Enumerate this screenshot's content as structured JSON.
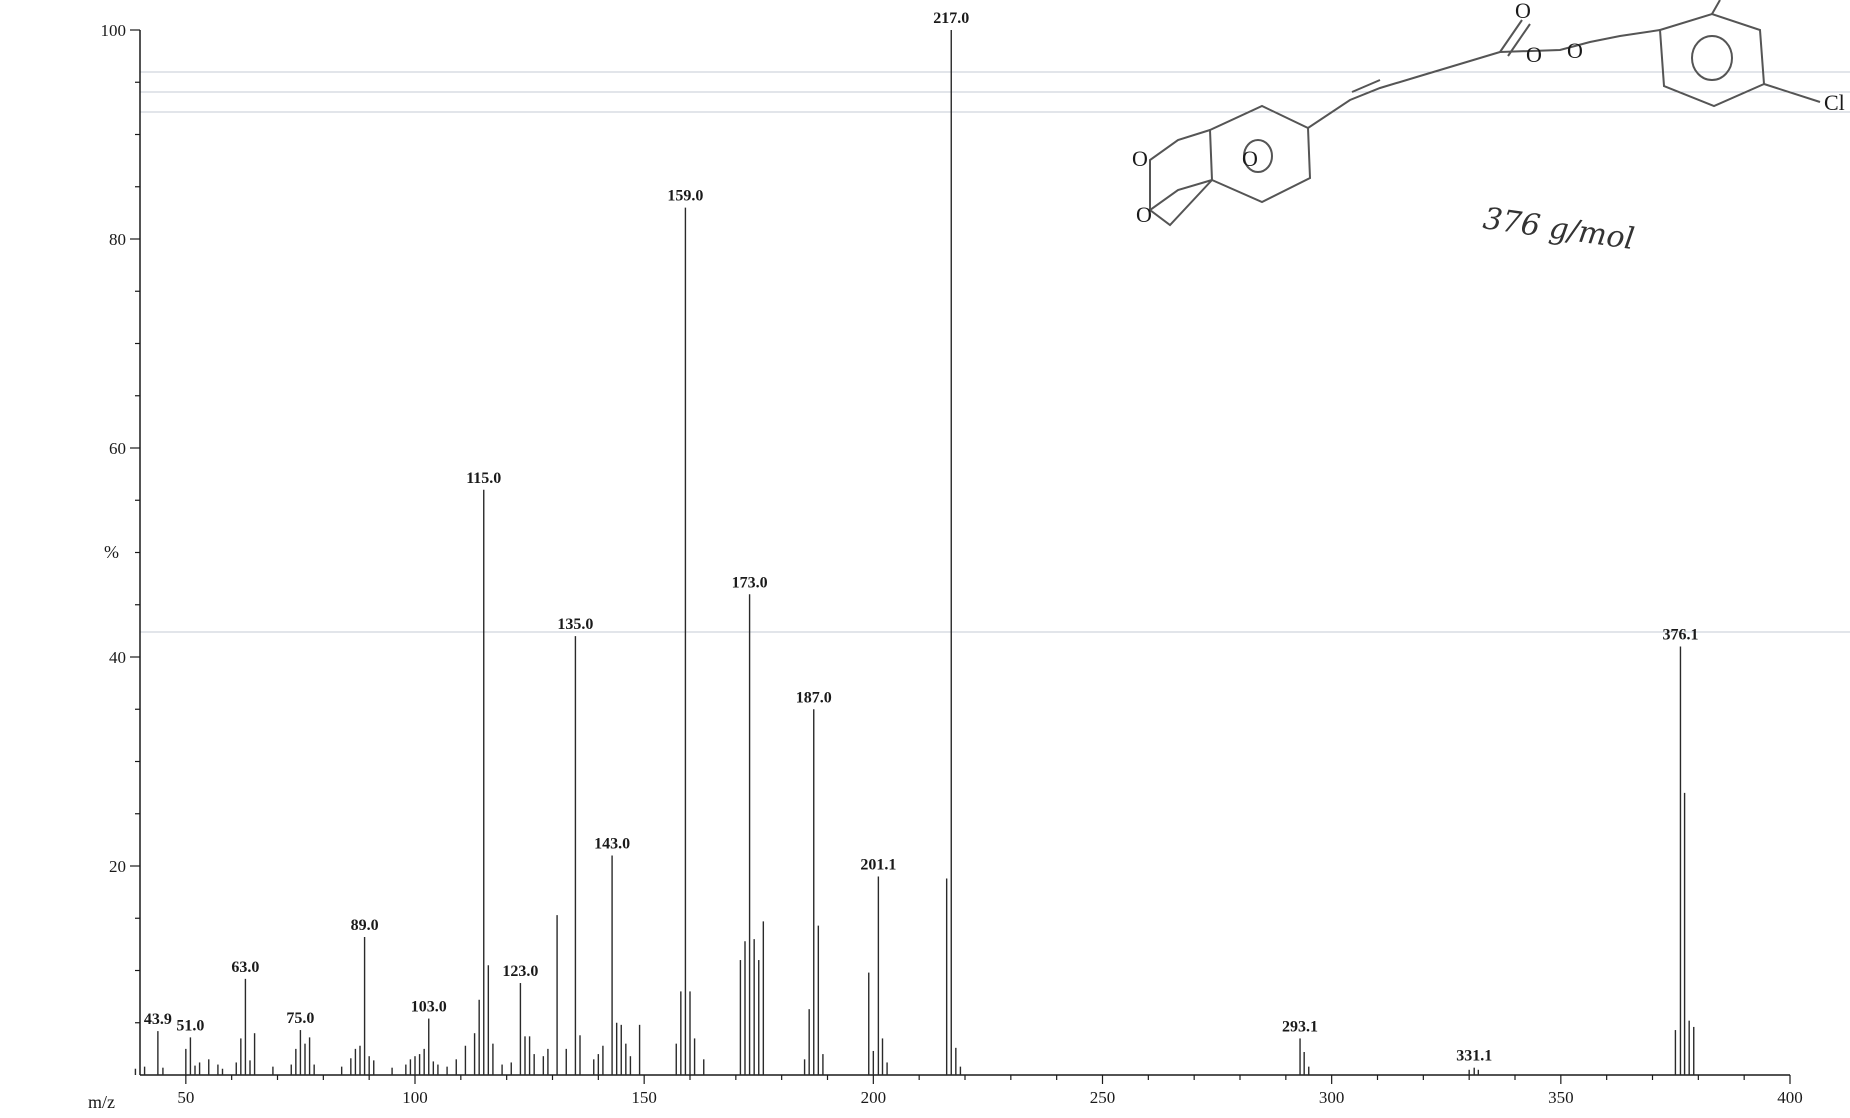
{
  "chart_data": {
    "type": "bar",
    "title": "",
    "xlabel": "m/z",
    "ylabel": "%",
    "xlim": [
      40,
      400
    ],
    "ylim": [
      0,
      100
    ],
    "x_ticks": [
      50,
      100,
      150,
      200,
      250,
      300,
      350,
      400
    ],
    "y_ticks": [
      20,
      40,
      60,
      80,
      100
    ],
    "grid": false,
    "labeled_peaks": [
      {
        "mz": 43.9,
        "label": "43.9",
        "intensity": 4.2
      },
      {
        "mz": 51.0,
        "label": "51.0",
        "intensity": 3.6
      },
      {
        "mz": 63.0,
        "label": "63.0",
        "intensity": 9.2
      },
      {
        "mz": 75.0,
        "label": "75.0",
        "intensity": 4.3
      },
      {
        "mz": 89.0,
        "label": "89.0",
        "intensity": 13.2
      },
      {
        "mz": 103.0,
        "label": "103.0",
        "intensity": 5.4
      },
      {
        "mz": 115.0,
        "label": "115.0",
        "intensity": 56.0
      },
      {
        "mz": 123.0,
        "label": "123.0",
        "intensity": 8.8
      },
      {
        "mz": 135.0,
        "label": "135.0",
        "intensity": 42.0
      },
      {
        "mz": 143.0,
        "label": "143.0",
        "intensity": 21.0
      },
      {
        "mz": 159.0,
        "label": "159.0",
        "intensity": 83.0
      },
      {
        "mz": 173.0,
        "label": "173.0",
        "intensity": 46.0
      },
      {
        "mz": 187.0,
        "label": "187.0",
        "intensity": 35.0
      },
      {
        "mz": 201.1,
        "label": "201.1",
        "intensity": 19.0
      },
      {
        "mz": 217.0,
        "label": "217.0",
        "intensity": 100.0
      },
      {
        "mz": 293.1,
        "label": "293.1",
        "intensity": 3.5
      },
      {
        "mz": 331.1,
        "label": "331.1",
        "intensity": 0.7
      },
      {
        "mz": 376.1,
        "label": "376.1",
        "intensity": 41.0
      }
    ],
    "other_peaks": [
      {
        "mz": 39.0,
        "intensity": 0.6
      },
      {
        "mz": 41.0,
        "intensity": 0.8
      },
      {
        "mz": 45.0,
        "intensity": 0.7
      },
      {
        "mz": 50.0,
        "intensity": 2.5
      },
      {
        "mz": 52.0,
        "intensity": 0.9
      },
      {
        "mz": 53.0,
        "intensity": 1.2
      },
      {
        "mz": 55.0,
        "intensity": 1.5
      },
      {
        "mz": 57.0,
        "intensity": 1.0
      },
      {
        "mz": 58.0,
        "intensity": 0.6
      },
      {
        "mz": 61.0,
        "intensity": 1.2
      },
      {
        "mz": 62.0,
        "intensity": 3.5
      },
      {
        "mz": 64.0,
        "intensity": 1.4
      },
      {
        "mz": 65.0,
        "intensity": 4.0
      },
      {
        "mz": 69.0,
        "intensity": 0.8
      },
      {
        "mz": 73.0,
        "intensity": 1.0
      },
      {
        "mz": 74.0,
        "intensity": 2.5
      },
      {
        "mz": 76.0,
        "intensity": 3.0
      },
      {
        "mz": 77.0,
        "intensity": 3.6
      },
      {
        "mz": 78.0,
        "intensity": 1.0
      },
      {
        "mz": 84.0,
        "intensity": 0.8
      },
      {
        "mz": 86.0,
        "intensity": 1.6
      },
      {
        "mz": 87.0,
        "intensity": 2.5
      },
      {
        "mz": 88.0,
        "intensity": 2.8
      },
      {
        "mz": 90.0,
        "intensity": 1.8
      },
      {
        "mz": 91.0,
        "intensity": 1.4
      },
      {
        "mz": 95.0,
        "intensity": 0.7
      },
      {
        "mz": 98.0,
        "intensity": 1.0
      },
      {
        "mz": 99.0,
        "intensity": 1.5
      },
      {
        "mz": 100.0,
        "intensity": 1.8
      },
      {
        "mz": 101.0,
        "intensity": 2.0
      },
      {
        "mz": 102.0,
        "intensity": 2.5
      },
      {
        "mz": 104.0,
        "intensity": 1.3
      },
      {
        "mz": 105.0,
        "intensity": 1.0
      },
      {
        "mz": 107.0,
        "intensity": 0.8
      },
      {
        "mz": 109.0,
        "intensity": 1.5
      },
      {
        "mz": 111.0,
        "intensity": 2.8
      },
      {
        "mz": 113.0,
        "intensity": 4.0
      },
      {
        "mz": 114.0,
        "intensity": 7.2
      },
      {
        "mz": 116.0,
        "intensity": 10.5
      },
      {
        "mz": 117.0,
        "intensity": 3.0
      },
      {
        "mz": 119.0,
        "intensity": 1.0
      },
      {
        "mz": 121.0,
        "intensity": 1.2
      },
      {
        "mz": 124.0,
        "intensity": 3.7
      },
      {
        "mz": 125.0,
        "intensity": 3.7
      },
      {
        "mz": 126.0,
        "intensity": 2.0
      },
      {
        "mz": 128.0,
        "intensity": 1.8
      },
      {
        "mz": 129.0,
        "intensity": 2.5
      },
      {
        "mz": 131.0,
        "intensity": 15.3
      },
      {
        "mz": 133.0,
        "intensity": 2.5
      },
      {
        "mz": 136.0,
        "intensity": 3.8
      },
      {
        "mz": 139.0,
        "intensity": 1.5
      },
      {
        "mz": 140.0,
        "intensity": 2.0
      },
      {
        "mz": 141.0,
        "intensity": 2.8
      },
      {
        "mz": 144.0,
        "intensity": 5.0
      },
      {
        "mz": 145.0,
        "intensity": 4.8
      },
      {
        "mz": 146.0,
        "intensity": 3.0
      },
      {
        "mz": 147.0,
        "intensity": 1.8
      },
      {
        "mz": 149.0,
        "intensity": 4.8
      },
      {
        "mz": 157.0,
        "intensity": 3.0
      },
      {
        "mz": 158.0,
        "intensity": 8.0
      },
      {
        "mz": 160.0,
        "intensity": 8.0
      },
      {
        "mz": 161.0,
        "intensity": 3.5
      },
      {
        "mz": 163.0,
        "intensity": 1.5
      },
      {
        "mz": 171.0,
        "intensity": 11.0
      },
      {
        "mz": 172.0,
        "intensity": 12.8
      },
      {
        "mz": 174.0,
        "intensity": 13.0
      },
      {
        "mz": 175.0,
        "intensity": 11.0
      },
      {
        "mz": 176.0,
        "intensity": 14.7
      },
      {
        "mz": 185.0,
        "intensity": 1.5
      },
      {
        "mz": 186.0,
        "intensity": 6.3
      },
      {
        "mz": 188.0,
        "intensity": 14.3
      },
      {
        "mz": 189.0,
        "intensity": 2.0
      },
      {
        "mz": 199.0,
        "intensity": 9.8
      },
      {
        "mz": 200.0,
        "intensity": 2.3
      },
      {
        "mz": 202.0,
        "intensity": 3.5
      },
      {
        "mz": 203.0,
        "intensity": 1.2
      },
      {
        "mz": 216.0,
        "intensity": 18.8
      },
      {
        "mz": 218.0,
        "intensity": 2.6
      },
      {
        "mz": 219.0,
        "intensity": 0.8
      },
      {
        "mz": 294.0,
        "intensity": 2.2
      },
      {
        "mz": 295.0,
        "intensity": 0.8
      },
      {
        "mz": 330.0,
        "intensity": 0.5
      },
      {
        "mz": 332.0,
        "intensity": 0.5
      },
      {
        "mz": 375.0,
        "intensity": 4.3
      },
      {
        "mz": 377.0,
        "intensity": 27.0
      },
      {
        "mz": 378.0,
        "intensity": 5.2
      },
      {
        "mz": 379.0,
        "intensity": 4.6
      }
    ]
  },
  "annotations": {
    "handwritten_mass": "376 g/mol",
    "structure_atoms": [
      "O",
      "O",
      "O",
      "O",
      "O",
      "O",
      "Cl"
    ]
  }
}
